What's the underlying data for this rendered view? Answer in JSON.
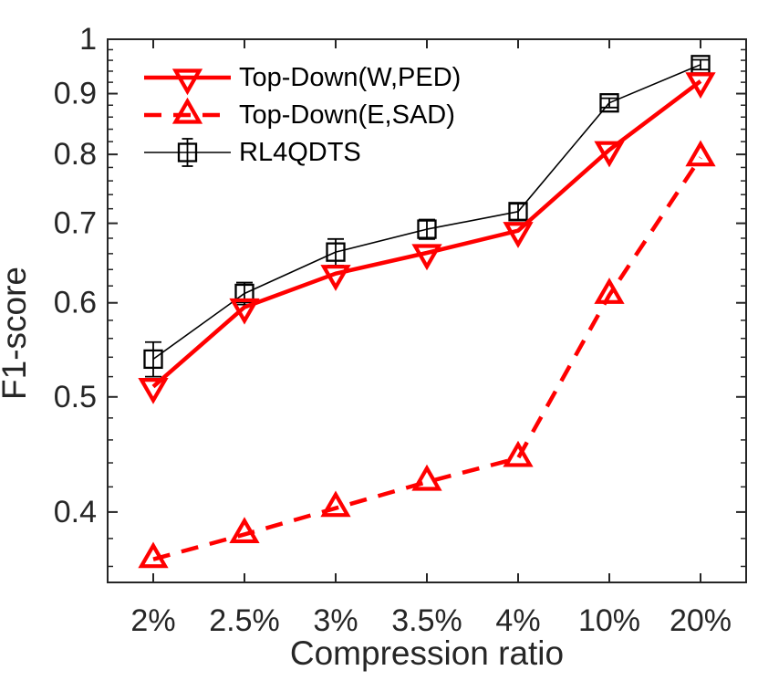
{
  "figure": {
    "background": "#ffffff",
    "axis_color": "#262626",
    "text_color": "#262626",
    "legend_text_color": "#000000"
  },
  "chart_data": {
    "type": "line",
    "title": "",
    "xlabel": "Compression ratio",
    "ylabel": "F1-score",
    "x_categories": [
      "2%",
      "2.5%",
      "3%",
      "3.5%",
      "4%",
      "10%",
      "20%"
    ],
    "y_scale": "log",
    "ylim": [
      0.349,
      1.0
    ],
    "y_tick_values": [
      0.4,
      0.5,
      0.6,
      0.7,
      0.8,
      0.9,
      1
    ],
    "y_tick_labels": [
      "0.4",
      "0.5",
      "0.6",
      "0.7",
      "0.8",
      "0.9",
      "1"
    ],
    "y_minor_tick_step": 0.02,
    "grid": false,
    "legend_position": "top-left-inside",
    "legend_border": "none",
    "series": [
      {
        "name": "Top-Down(W,PED)",
        "color": "#ff0000",
        "line_style": "solid",
        "line_width": 4.5,
        "marker": "triangle-down",
        "marker_filled": false,
        "values": [
          0.51,
          0.595,
          0.635,
          0.661,
          0.69,
          0.807,
          0.922
        ]
      },
      {
        "name": "Top-Down(E,SAD)",
        "color": "#ff0000",
        "line_style": "dashed",
        "line_width": 4.5,
        "marker": "triangle-up",
        "marker_filled": false,
        "values": [
          0.365,
          0.383,
          0.403,
          0.424,
          0.444,
          0.609,
          0.795
        ]
      },
      {
        "name": "RL4QDTS",
        "color": "#000000",
        "line_style": "solid",
        "line_width": 1.6,
        "marker": "square",
        "marker_filled": false,
        "values": [
          0.538,
          0.611,
          0.662,
          0.692,
          0.716,
          0.884,
          0.952
        ],
        "error": [
          0.018,
          0.013,
          0.017,
          0.013,
          0.011,
          0.008,
          0.009
        ]
      }
    ]
  }
}
